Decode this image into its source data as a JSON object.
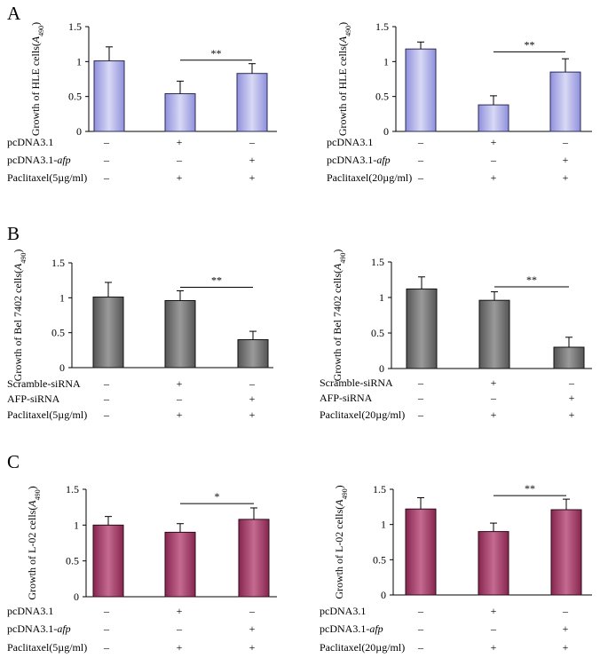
{
  "panel_labels": [
    "A",
    "B",
    "C"
  ],
  "colors": {
    "A": {
      "fill": "#8f90dc",
      "edge": "#2a2a55",
      "light": "#d8d9f5"
    },
    "B": {
      "fill": "#555555",
      "edge": "#111111",
      "light": "#9a9a9a"
    },
    "C": {
      "fill": "#86264f",
      "edge": "#2e0a1a",
      "light": "#c56a92"
    }
  },
  "chart_data": [
    {
      "type": "bar",
      "panel": "A",
      "position": "left",
      "ylabel_main": "Growth of HLE cells(",
      "ylabel_sym": "A",
      "ylabel_sub": "490",
      "ylabel_end": ")",
      "ylim": [
        0,
        1.5
      ],
      "yticks": [
        0,
        0.5,
        1,
        1.5
      ],
      "yticklabels": [
        "0",
        "0.5",
        "1",
        "1.5"
      ],
      "values": [
        1.01,
        0.54,
        0.83
      ],
      "errors": [
        0.2,
        0.18,
        0.14
      ],
      "significance": {
        "from": 1,
        "to": 2,
        "label": "**",
        "y": 1.02
      },
      "conditions": [
        {
          "label": "pcDNA3.1",
          "label_italic": "",
          "signs": [
            "–",
            "+",
            "–"
          ]
        },
        {
          "label": "pcDNA3.1-",
          "label_italic": "afp",
          "signs": [
            "–",
            "–",
            "+"
          ]
        },
        {
          "label": "Paclitaxel(5µg/ml)",
          "label_italic": "",
          "signs": [
            "–",
            "+",
            "+"
          ]
        }
      ]
    },
    {
      "type": "bar",
      "panel": "A",
      "position": "right",
      "ylabel_main": "Growth of HLE cells(",
      "ylabel_sym": "A",
      "ylabel_sub": "490",
      "ylabel_end": ")",
      "ylim": [
        0,
        1.5
      ],
      "yticks": [
        0,
        0.5,
        1,
        1.5
      ],
      "yticklabels": [
        "0",
        "0.5",
        "1",
        "1.5"
      ],
      "values": [
        1.18,
        0.38,
        0.85
      ],
      "errors": [
        0.1,
        0.13,
        0.19
      ],
      "significance": {
        "from": 1,
        "to": 2,
        "label": "**",
        "y": 1.14
      },
      "conditions": [
        {
          "label": "pcDNA3.1",
          "label_italic": "",
          "signs": [
            "–",
            "+",
            "–"
          ]
        },
        {
          "label": "pcDNA3.1-",
          "label_italic": "afp",
          "signs": [
            "–",
            "–",
            "+"
          ]
        },
        {
          "label": "Paclitaxel(20µg/ml)",
          "label_italic": "",
          "signs": [
            "–",
            "+",
            "+"
          ]
        }
      ]
    },
    {
      "type": "bar",
      "panel": "B",
      "position": "left",
      "ylabel_main": "Growth of Bel 7402 cells(",
      "ylabel_sym": "A",
      "ylabel_sub": "490",
      "ylabel_end": ")",
      "ylim": [
        0,
        1.5
      ],
      "yticks": [
        0,
        0.5,
        1,
        1.5
      ],
      "yticklabels": [
        "0",
        "0.5",
        "1",
        "1.5"
      ],
      "values": [
        1.01,
        0.96,
        0.4
      ],
      "errors": [
        0.21,
        0.14,
        0.12
      ],
      "significance": {
        "from": 1,
        "to": 2,
        "label": "**",
        "y": 1.15
      },
      "conditions": [
        {
          "label": "Scramble-siRNA",
          "label_italic": "",
          "signs": [
            "–",
            "+",
            "–"
          ]
        },
        {
          "label": "AFP-siRNA",
          "label_italic": "",
          "signs": [
            "–",
            "–",
            "+"
          ]
        },
        {
          "label": "Paclitaxel(5µg/ml)",
          "label_italic": "",
          "signs": [
            "–",
            "+",
            "+"
          ]
        }
      ]
    },
    {
      "type": "bar",
      "panel": "B",
      "position": "right",
      "ylabel_main": "Growth of Bel 7402 cells(",
      "ylabel_sym": "A",
      "ylabel_sub": "490",
      "ylabel_end": ")",
      "ylim": [
        0,
        1.5
      ],
      "yticks": [
        0,
        0.5,
        1,
        1.5
      ],
      "yticklabels": [
        "0",
        "0.5",
        "1",
        "1.5"
      ],
      "values": [
        1.12,
        0.96,
        0.3
      ],
      "errors": [
        0.17,
        0.12,
        0.14
      ],
      "significance": {
        "from": 1,
        "to": 2,
        "label": "**",
        "y": 1.15
      },
      "conditions": [
        {
          "label": "Scramble-siRNA",
          "label_italic": "",
          "signs": [
            "–",
            "+",
            "–"
          ]
        },
        {
          "label": "AFP-siRNA",
          "label_italic": "",
          "signs": [
            "–",
            "–",
            "+"
          ]
        },
        {
          "label": "Paclitaxel(20µg/ml)",
          "label_italic": "",
          "signs": [
            "–",
            "+",
            "+"
          ]
        }
      ]
    },
    {
      "type": "bar",
      "panel": "C",
      "position": "left",
      "ylabel_main": "Growth of L-02 cells(",
      "ylabel_sym": "A",
      "ylabel_sub": "490",
      "ylabel_end": ")",
      "ylim": [
        0,
        1.5
      ],
      "yticks": [
        0,
        0.5,
        1,
        1.5
      ],
      "yticklabels": [
        "0",
        "0.5",
        "1",
        "1.5"
      ],
      "values": [
        1.0,
        0.9,
        1.08
      ],
      "errors": [
        0.12,
        0.12,
        0.16
      ],
      "significance": {
        "from": 1,
        "to": 2,
        "label": "*",
        "y": 1.3
      },
      "conditions": [
        {
          "label": "pcDNA3.1",
          "label_italic": "",
          "signs": [
            "–",
            "+",
            "–"
          ]
        },
        {
          "label": "pcDNA3.1-",
          "label_italic": "afp",
          "signs": [
            "–",
            "–",
            "+"
          ]
        },
        {
          "label": "Paclitaxel(5µg/ml)",
          "label_italic": "",
          "signs": [
            "–",
            "+",
            "+"
          ]
        }
      ]
    },
    {
      "type": "bar",
      "panel": "C",
      "position": "right",
      "ylabel_main": "Growth of L-02 cells(",
      "ylabel_sym": "A",
      "ylabel_sub": "490",
      "ylabel_end": ")",
      "ylim": [
        0,
        1.5
      ],
      "yticks": [
        0,
        0.5,
        1,
        1.5
      ],
      "yticklabels": [
        "0",
        "0.5",
        "1",
        "1.5"
      ],
      "values": [
        1.22,
        0.9,
        1.21
      ],
      "errors": [
        0.16,
        0.12,
        0.15
      ],
      "significance": {
        "from": 1,
        "to": 2,
        "label": "**",
        "y": 1.41
      },
      "conditions": [
        {
          "label": "pcDNA3.1",
          "label_italic": "",
          "signs": [
            "–",
            "+",
            "–"
          ]
        },
        {
          "label": "pcDNA3.1-",
          "label_italic": "afp",
          "signs": [
            "–",
            "–",
            "+"
          ]
        },
        {
          "label": "Paclitaxel(20µg/ml)",
          "label_italic": "",
          "signs": [
            "–",
            "+",
            "+"
          ]
        }
      ]
    }
  ]
}
